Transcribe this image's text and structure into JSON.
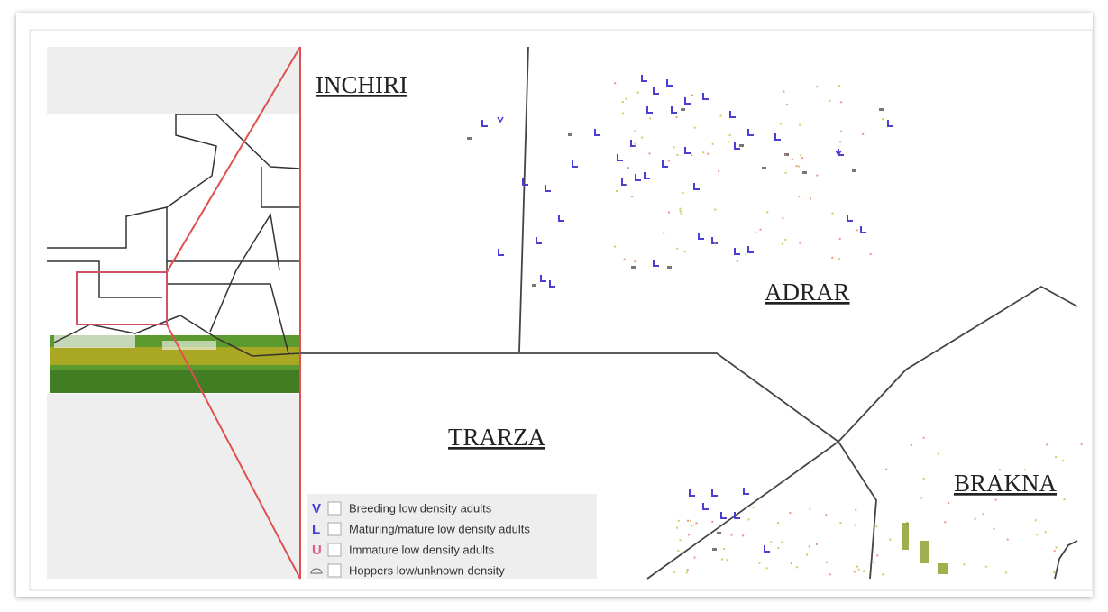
{
  "regions": [
    {
      "label": "INCHIRI"
    },
    {
      "label": "ADRAR"
    },
    {
      "label": "TRARZA"
    },
    {
      "label": "BRAKNA"
    }
  ],
  "legend": [
    {
      "symbol": "V",
      "label": "Breeding low density adults"
    },
    {
      "symbol": "L",
      "label": "Maturing/mature low density adults"
    },
    {
      "symbol": "U",
      "label": "Immature low density adults"
    },
    {
      "label": "Hoppers low/unknown density"
    }
  ]
}
